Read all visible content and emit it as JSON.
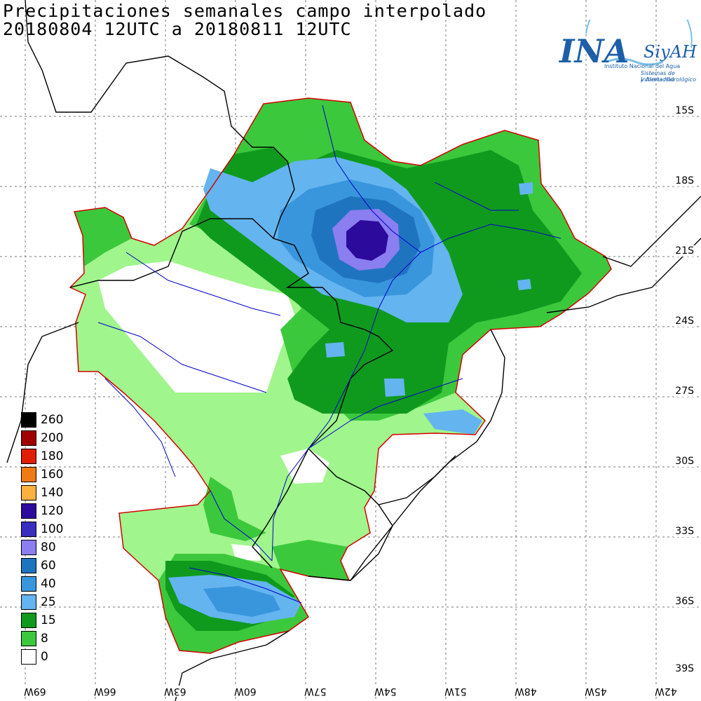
{
  "header": {
    "title_line1": "Precipitaciones semanales campo interpolado",
    "title_line2": "20180804 12UTC a 20180811 12UTC"
  },
  "logo": {
    "main": "INA",
    "siyah": "SiyAH",
    "sub1": "Instituto Nacional del Agua",
    "sub2": "Sistemas de Información",
    "sub3": "y Alerta Hidrológico"
  },
  "legend": {
    "items": [
      {
        "label": "260",
        "color": "#000000"
      },
      {
        "label": "200",
        "color": "#a00000"
      },
      {
        "label": "180",
        "color": "#e01e00"
      },
      {
        "label": "160",
        "color": "#f07a14"
      },
      {
        "label": "140",
        "color": "#fbb040"
      },
      {
        "label": "120",
        "color": "#2c0a9c"
      },
      {
        "label": "100",
        "color": "#3a2ec0"
      },
      {
        "label": "80",
        "color": "#8a7ef0"
      },
      {
        "label": "60",
        "color": "#1f74c0"
      },
      {
        "label": "40",
        "color": "#3a96dc"
      },
      {
        "label": "25",
        "color": "#64b4f0"
      },
      {
        "label": "15",
        "color": "#0f9a1e"
      },
      {
        "label": "8",
        "color": "#3cc83c"
      },
      {
        "label": "0",
        "color": "#ffffff"
      }
    ]
  },
  "axes": {
    "lat_labels": [
      "15S",
      "18S",
      "21S",
      "24S",
      "27S",
      "30S",
      "33S",
      "36S",
      "39S"
    ],
    "lon_labels": [
      "69W",
      "66W",
      "63W",
      "60W",
      "57W",
      "54W",
      "51W",
      "48W",
      "45W",
      "42W"
    ]
  },
  "colors": {
    "basin_outline": "#d40000",
    "rivers": "#0000c8",
    "borders": "#000000"
  }
}
